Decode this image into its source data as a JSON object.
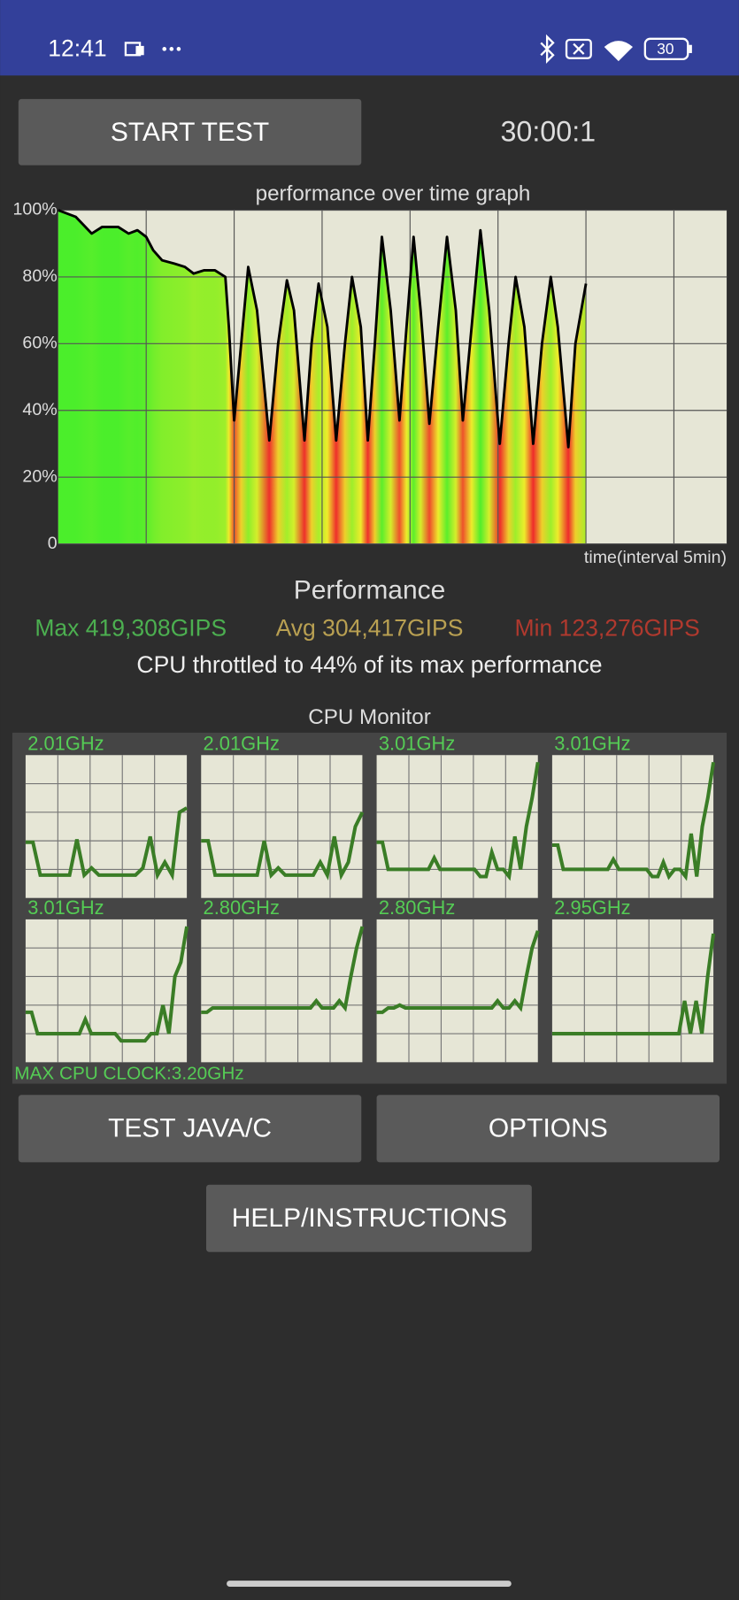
{
  "status_bar": {
    "time": "12:41",
    "battery": "30"
  },
  "start_button": "START TEST",
  "timer": "30:00:1",
  "chart_data": {
    "type": "line",
    "title": "performance over time graph",
    "x_label": "time(interval 5min)",
    "x": [
      0,
      0.5,
      1.0,
      1.9,
      2.5,
      3.4,
      4.0,
      4.5,
      5.0,
      5.4,
      5.9,
      6.6,
      7.2,
      7.7,
      8.3,
      8.9,
      9.5,
      9.7,
      10.0,
      10.4,
      10.8,
      11.3,
      12.0,
      12.5,
      13.0,
      13.4,
      14.0,
      14.4,
      14.8,
      15.3,
      15.8,
      16.3,
      16.7,
      17.2,
      17.6,
      18.0,
      18.4,
      18.9,
      19.4,
      19.8,
      20.2,
      20.6,
      21.1,
      21.6,
      22.1,
      22.6,
      23.0,
      23.5,
      24.0,
      24.5,
      25.1,
      25.6,
      26.0,
      26.5,
      27.0,
      27.5,
      28.0,
      28.4,
      29.0,
      29.4,
      30.0
    ],
    "values": [
      100,
      99,
      98,
      93,
      95,
      95,
      93,
      94,
      92,
      88,
      85,
      84,
      83,
      81,
      82,
      82,
      80,
      65,
      37,
      60,
      83,
      70,
      31,
      60,
      79,
      70,
      31,
      60,
      78,
      65,
      31,
      60,
      80,
      65,
      31,
      60,
      92,
      70,
      37,
      65,
      92,
      70,
      36,
      65,
      92,
      70,
      37,
      65,
      94,
      70,
      30,
      60,
      80,
      65,
      30,
      60,
      80,
      65,
      29,
      60,
      78
    ],
    "xlim": [
      0,
      38
    ],
    "xticks": [
      5,
      10,
      15,
      20,
      25,
      30,
      35
    ],
    "ylim": [
      0,
      100
    ],
    "yticks": [
      0,
      {
        "value": 20,
        "label": "20%"
      },
      {
        "value": 40,
        "label": "40%"
      },
      {
        "value": 60,
        "label": "60%"
      },
      {
        "value": 80,
        "label": "80%"
      },
      {
        "value": 100,
        "label": "100%"
      }
    ],
    "grid": true,
    "color": "#000000"
  },
  "performance": {
    "title": "Performance",
    "max": "Max 419,308GIPS",
    "avg": "Avg 304,417GIPS",
    "min": "Min 123,276GIPS",
    "summary": "CPU throttled to 44% of its max performance"
  },
  "cpu_monitor": {
    "title": "CPU Monitor",
    "ylim": [
      0,
      100
    ],
    "color": "#3a7d26",
    "cores": [
      {
        "label": "2.01GHz",
        "values": [
          39,
          39,
          16,
          16,
          16,
          16,
          16,
          41,
          16,
          21,
          16,
          16,
          16,
          16,
          16,
          16,
          21,
          43,
          16,
          25,
          16,
          60,
          63
        ]
      },
      {
        "label": "2.01GHz",
        "values": [
          40,
          40,
          16,
          16,
          16,
          16,
          16,
          16,
          16,
          40,
          16,
          21,
          16,
          16,
          16,
          16,
          16,
          25,
          16,
          43,
          16,
          25,
          50,
          60
        ]
      },
      {
        "label": "3.01GHz",
        "values": [
          39,
          39,
          20,
          20,
          20,
          20,
          20,
          20,
          20,
          20,
          28,
          20,
          20,
          20,
          20,
          20,
          20,
          20,
          15,
          15,
          32,
          20,
          20,
          15,
          43,
          20,
          50,
          70,
          95
        ]
      },
      {
        "label": "3.01GHz",
        "values": [
          37,
          37,
          20,
          20,
          20,
          20,
          20,
          20,
          20,
          20,
          20,
          27,
          20,
          20,
          20,
          20,
          20,
          20,
          15,
          15,
          25,
          15,
          20,
          20,
          15,
          45,
          15,
          50,
          70,
          95
        ]
      },
      {
        "label": "3.01GHz",
        "values": [
          35,
          35,
          20,
          20,
          20,
          20,
          20,
          20,
          20,
          20,
          30,
          20,
          20,
          20,
          20,
          20,
          15,
          15,
          15,
          15,
          15,
          20,
          20,
          40,
          20,
          60,
          70,
          95
        ]
      },
      {
        "label": "2.80GHz",
        "values": [
          35,
          35,
          38,
          38,
          38,
          38,
          38,
          38,
          38,
          38,
          38,
          38,
          38,
          38,
          38,
          38,
          38,
          38,
          38,
          38,
          43,
          38,
          38,
          38,
          43,
          38,
          60,
          80,
          95
        ]
      },
      {
        "label": "2.80GHz",
        "values": [
          35,
          35,
          38,
          38,
          40,
          38,
          38,
          38,
          38,
          38,
          38,
          38,
          38,
          38,
          38,
          38,
          38,
          38,
          38,
          38,
          38,
          43,
          38,
          38,
          43,
          38,
          60,
          80,
          92
        ]
      },
      {
        "label": "2.95GHz",
        "values": [
          20,
          20,
          20,
          20,
          20,
          20,
          20,
          20,
          20,
          20,
          20,
          20,
          20,
          20,
          20,
          20,
          20,
          20,
          20,
          20,
          20,
          20,
          20,
          43,
          20,
          43,
          20,
          60,
          90
        ]
      }
    ],
    "max_clock": "MAX CPU CLOCK:3.20GHz"
  },
  "buttons": [
    "TEST JAVA/C",
    "OPTIONS",
    "HELP/INSTRUCTIONS"
  ]
}
